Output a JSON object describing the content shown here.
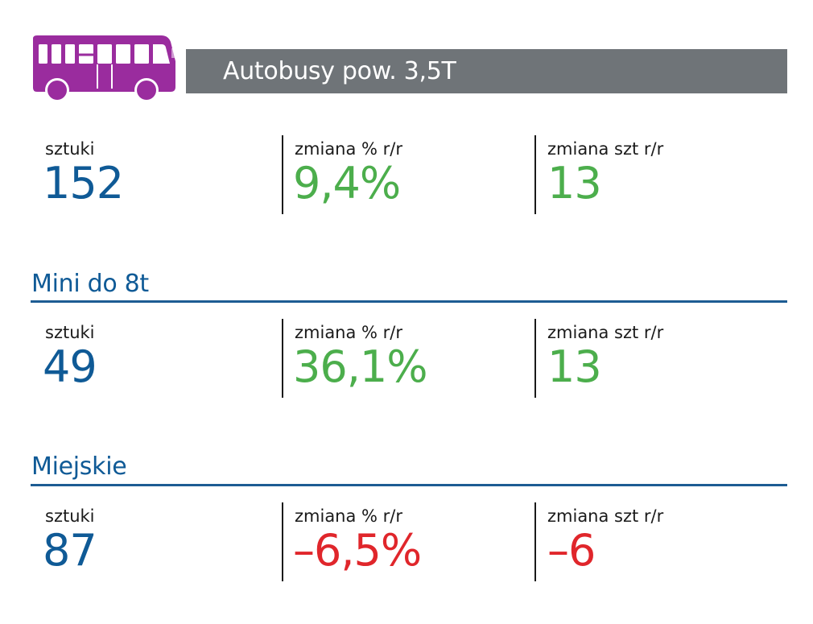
{
  "header": {
    "title": "Autobusy pow. 3,5T",
    "icon": "bus-icon",
    "icon_color": "#9a2c9e",
    "bar_color": "#6f7478"
  },
  "colors": {
    "blue": "#0f5a96",
    "positive": "#4cae4c",
    "negative": "#e0262b"
  },
  "sections": [
    {
      "title": "",
      "stats": {
        "units_label": "sztuki",
        "units_value": "152",
        "pct_label": "zmiana % r/r",
        "pct_value": "9,4%",
        "change_label": "zmiana szt r/r",
        "change_value": "13"
      }
    },
    {
      "title": "Mini do 8t",
      "stats": {
        "units_label": "sztuki",
        "units_value": "49",
        "pct_label": "zmiana % r/r",
        "pct_value": "36,1%",
        "change_label": "zmiana szt r/r",
        "change_value": "13"
      }
    },
    {
      "title": "Miejskie",
      "stats": {
        "units_label": "sztuki",
        "units_value": "87",
        "pct_label": "zmiana % r/r",
        "pct_value": "–6,5%",
        "change_label": "zmiana szt r/r",
        "change_value": "–6"
      }
    }
  ]
}
